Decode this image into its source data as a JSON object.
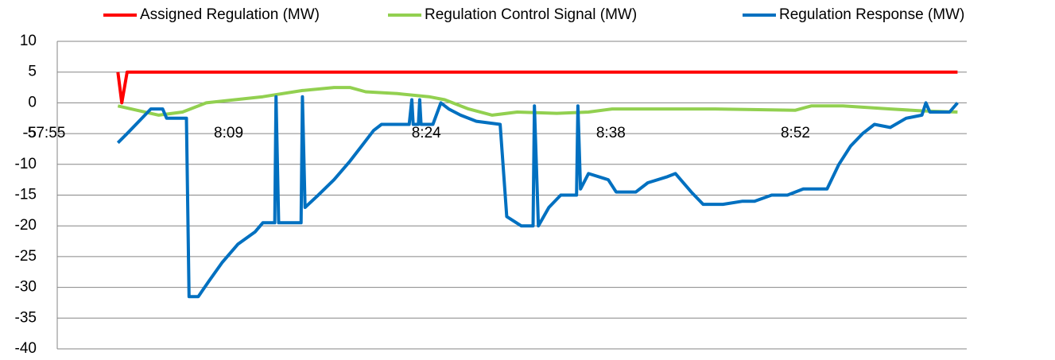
{
  "chart_data": {
    "type": "line",
    "xlim": [
      476,
      545
    ],
    "xticks": [
      {
        "value": 475,
        "label": "-57:55"
      },
      {
        "value": 489,
        "label": "8:09"
      },
      {
        "value": 504,
        "label": "8:24"
      },
      {
        "value": 518,
        "label": "8:38"
      },
      {
        "value": 532,
        "label": "8:52"
      }
    ],
    "ylim": [
      -40,
      10
    ],
    "yticks": [
      10,
      5,
      0,
      -5,
      -10,
      -15,
      -20,
      -25,
      -30,
      -35,
      -40
    ],
    "grid": true,
    "legend": "top",
    "series": [
      {
        "name": "Assigned Regulation (MW)",
        "color": "#ff0000",
        "x": [
          480.6,
          480.9,
          481.3,
          544.3
        ],
        "values": [
          5,
          0,
          5,
          5
        ]
      },
      {
        "name": "Regulation Control Signal (MW)",
        "color": "#92d050",
        "x": [
          480.6,
          483.7,
          485.5,
          487.3,
          491.6,
          494.6,
          497.0,
          498.2,
          499.4,
          501.8,
          504.2,
          505.4,
          507.2,
          509.0,
          510.9,
          513.9,
          516.3,
          518.1,
          525.9,
          532.0,
          533.2,
          535.6,
          539.2,
          541.6,
          544.3
        ],
        "values": [
          -0.5,
          -2,
          -1.5,
          0,
          1,
          2,
          2.5,
          2.5,
          1.8,
          1.5,
          1,
          0.5,
          -1,
          -2,
          -1.5,
          -1.7,
          -1.5,
          -1,
          -1,
          -1.2,
          -0.5,
          -0.5,
          -1,
          -1.3,
          -1.5
        ]
      },
      {
        "name": "Regulation Response (MW)",
        "color": "#0070c0",
        "x": [
          480.6,
          481.3,
          482.2,
          483.1,
          484.0,
          484.3,
          485.8,
          486.0,
          486.7,
          487.5,
          488.5,
          489.7,
          491.0,
          491.6,
          492.5,
          492.6,
          492.8,
          494.5,
          494.6,
          494.8,
          495.8,
          497.0,
          498.2,
          499.1,
          500.0,
          500.6,
          502.7,
          502.9,
          503.0,
          503.4,
          503.5,
          503.6,
          504.5,
          505.1,
          505.7,
          506.6,
          507.8,
          509.6,
          510.1,
          511.2,
          512.1,
          512.2,
          512.5,
          513.3,
          514.2,
          515.4,
          515.5,
          515.7,
          516.3,
          517.8,
          518.4,
          519.9,
          520.8,
          522.3,
          522.9,
          524.1,
          525.0,
          526.5,
          528.0,
          528.9,
          530.2,
          531.4,
          532.6,
          534.4,
          535.3,
          536.2,
          537.1,
          538.0,
          539.2,
          540.4,
          541.6,
          541.9,
          542.2,
          543.7,
          544.3
        ],
        "values": [
          -6.5,
          -5,
          -3,
          -1,
          -1,
          -2.5,
          -2.5,
          -31.5,
          -31.5,
          -29,
          -26,
          -23,
          -21,
          -19.5,
          -19.5,
          1,
          -19.5,
          -19.5,
          1,
          -17,
          -15,
          -12.5,
          -9.5,
          -7,
          -4.5,
          -3.5,
          -3.5,
          0.5,
          -3.5,
          -3.5,
          0.5,
          -3.5,
          -3.5,
          0,
          -1,
          -2,
          -3,
          -3.5,
          -18.5,
          -20,
          -20,
          -0.5,
          -20,
          -17,
          -15,
          -15,
          -0.5,
          -14,
          -11.5,
          -12.5,
          -14.5,
          -14.5,
          -13,
          -12,
          -11.5,
          -14.5,
          -16.5,
          -16.5,
          -16,
          -16,
          -15,
          -15,
          -14,
          -14,
          -10,
          -7,
          -5,
          -3.5,
          -4,
          -2.5,
          -2,
          0,
          -1.5,
          -1.5,
          0
        ]
      }
    ]
  }
}
